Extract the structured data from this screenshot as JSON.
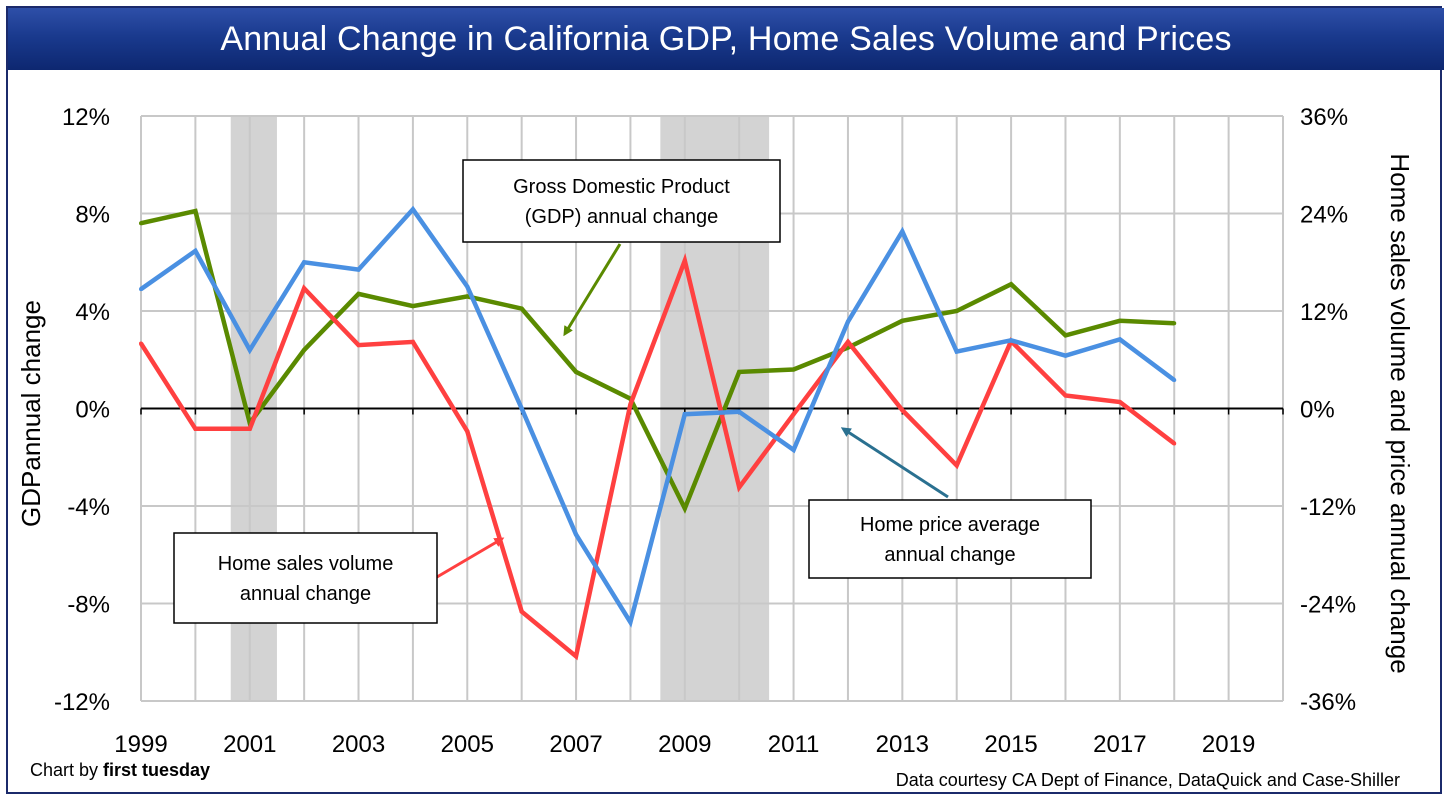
{
  "title": "Annual Change in California GDP, Home Sales Volume and Prices",
  "credit": {
    "prefix": "Chart by ",
    "brand": "first tuesday"
  },
  "source": "Data courtesy CA Dept of Finance, DataQuick and Case-Shiller",
  "colors": {
    "gdp": "#5a8a00",
    "sales": "#ff4040",
    "price": "#4a90e2",
    "recession": "#d3d3d3",
    "grid": "#c8c8c8",
    "title_bg": "#1a3a8e"
  },
  "chart_data": {
    "type": "line",
    "xlim": [
      1999,
      2020
    ],
    "x_ticks": [
      1999,
      2001,
      2003,
      2005,
      2007,
      2009,
      2011,
      2013,
      2015,
      2017,
      2019
    ],
    "x_tick_labels": [
      "1999",
      "2001",
      "2003",
      "2005",
      "2007",
      "2009",
      "2011",
      "2013",
      "2015",
      "2017",
      "2019"
    ],
    "ylabel": "GDPannual change",
    "ylim": [
      -12,
      12
    ],
    "y_ticks": [
      -12,
      -8,
      -4,
      0,
      4,
      8,
      12
    ],
    "y_tick_labels": [
      "-12%",
      "-8%",
      "-4%",
      "0%",
      "4%",
      "8%",
      "12%"
    ],
    "y2label": "Home sales volume and price annual change",
    "y2lim": [
      -36,
      36
    ],
    "y2_ticks": [
      -36,
      -24,
      -12,
      0,
      12,
      24,
      36
    ],
    "y2_tick_labels": [
      "-36%",
      "-24%",
      "-12%",
      "0%",
      "12%",
      "24%",
      "36%"
    ],
    "grid": true,
    "recession_bands": [
      [
        2000.65,
        2001.5
      ],
      [
        2008.55,
        2010.55
      ]
    ],
    "series": [
      {
        "key": "gdp",
        "axis": "left",
        "x": [
          1999,
          2000,
          2001,
          2002,
          2003,
          2004,
          2005,
          2006,
          2007,
          2008,
          2009,
          2010,
          2011,
          2012,
          2013,
          2014,
          2015,
          2016,
          2017,
          2018
        ],
        "values": [
          7.6,
          8.1,
          -0.6,
          2.4,
          4.7,
          4.2,
          4.6,
          4.1,
          1.5,
          0.4,
          -4.1,
          1.5,
          1.6,
          2.5,
          3.6,
          4.0,
          5.1,
          3.0,
          3.6,
          3.5
        ]
      },
      {
        "key": "sales",
        "axis": "right",
        "x": [
          1999,
          2000,
          2001,
          2002,
          2003,
          2004,
          2005,
          2006,
          2007,
          2008,
          2009,
          2010,
          2011,
          2012,
          2013,
          2014,
          2015,
          2016,
          2017,
          2018
        ],
        "values": [
          8.0,
          -2.5,
          -2.5,
          14.8,
          7.8,
          8.2,
          -2.8,
          -25.0,
          -30.5,
          0.5,
          18.2,
          -9.7,
          -0.7,
          8.2,
          -0.2,
          -7.0,
          8.3,
          1.6,
          0.8,
          -4.3
        ]
      },
      {
        "key": "price",
        "axis": "right",
        "x": [
          1999,
          2000,
          2001,
          2002,
          2003,
          2004,
          2005,
          2006,
          2007,
          2008,
          2009,
          2010,
          2011,
          2012,
          2013,
          2014,
          2015,
          2016,
          2017,
          2018
        ],
        "values": [
          14.7,
          19.4,
          7.2,
          18.0,
          17.1,
          24.5,
          15.0,
          0.0,
          -15.5,
          -26.3,
          -0.7,
          -0.4,
          -5.1,
          10.7,
          21.8,
          7.0,
          8.4,
          6.5,
          8.5,
          3.5
        ]
      }
    ],
    "annotations": [
      {
        "key": "gdp",
        "lines": [
          "Gross Domestic Product",
          "(GDP) annual change"
        ]
      },
      {
        "key": "sales",
        "lines": [
          "Home sales volume",
          "annual change"
        ]
      },
      {
        "key": "price",
        "lines": [
          "Home price average",
          "annual change"
        ]
      }
    ]
  }
}
